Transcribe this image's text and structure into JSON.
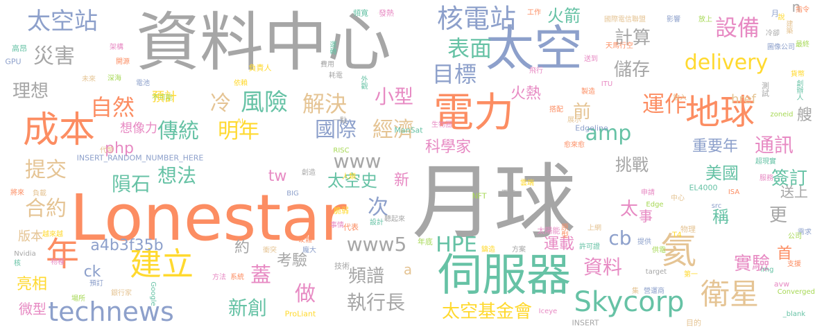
{
  "palette": {
    "gray": "#a6a6a6",
    "orange": "#fc8d62",
    "blue": "#8da0cb",
    "pink": "#e78ac3",
    "green": "#a6d854",
    "yellow": "#ffd92f",
    "tan": "#e5c494",
    "teal": "#66c2a5"
  },
  "words": [
    {
      "text": "月球",
      "c": "gray"
    },
    {
      "text": "Lonestar",
      "c": "orange"
    },
    {
      "text": "資料中心",
      "c": "gray"
    },
    {
      "text": "太空",
      "c": "blue"
    },
    {
      "text": "伺服器",
      "c": "teal"
    },
    {
      "text": "電力",
      "c": "orange"
    },
    {
      "text": "地球",
      "c": "orange"
    },
    {
      "text": "成本",
      "c": "orange"
    },
    {
      "text": "年",
      "c": "orange"
    },
    {
      "text": "建立",
      "c": "yellow"
    },
    {
      "text": "technews",
      "c": "blue"
    },
    {
      "text": "氦",
      "c": "tan"
    },
    {
      "text": "衛星",
      "c": "tan"
    },
    {
      "text": "Skycorp",
      "c": "teal"
    },
    {
      "text": "核電站",
      "c": "blue"
    },
    {
      "text": "太空站",
      "c": "blue"
    },
    {
      "text": "表面",
      "c": "teal"
    },
    {
      "text": "目標",
      "c": "blue"
    },
    {
      "text": "自然",
      "c": "orange"
    },
    {
      "text": "風險",
      "c": "teal"
    },
    {
      "text": "解決",
      "c": "tan"
    },
    {
      "text": "冷",
      "c": "tan"
    },
    {
      "text": "傳統",
      "c": "teal"
    },
    {
      "text": "明年",
      "c": "yellow"
    },
    {
      "text": "國際",
      "c": "blue"
    },
    {
      "text": "經濟",
      "c": "tan"
    },
    {
      "text": "delivery",
      "c": "yellow"
    },
    {
      "text": "amp",
      "c": "teal"
    },
    {
      "text": "運作",
      "c": "orange"
    },
    {
      "text": "設備",
      "c": "pink"
    },
    {
      "text": "計算",
      "c": "gray"
    },
    {
      "text": "儲存",
      "c": "gray"
    },
    {
      "text": "火箭",
      "c": "teal"
    },
    {
      "text": "災害",
      "c": "gray"
    },
    {
      "text": "理想",
      "c": "gray"
    },
    {
      "text": "小型",
      "c": "pink"
    },
    {
      "text": "火熱",
      "c": "pink"
    },
    {
      "text": "前",
      "c": "tan"
    },
    {
      "text": "php",
      "c": "pink"
    },
    {
      "text": "想法",
      "c": "teal"
    },
    {
      "text": "隕石",
      "c": "teal"
    },
    {
      "text": "提交",
      "c": "tan"
    },
    {
      "text": "合約",
      "c": "tan"
    },
    {
      "text": "www",
      "c": "gray"
    },
    {
      "text": "www5",
      "c": "gray"
    },
    {
      "text": "tw",
      "c": "pink"
    },
    {
      "text": "HPE",
      "c": "teal"
    },
    {
      "text": "cb",
      "c": "blue"
    },
    {
      "text": "挑戰",
      "c": "gray"
    },
    {
      "text": "美國",
      "c": "teal"
    },
    {
      "text": "通訊",
      "c": "pink"
    },
    {
      "text": "簽訂",
      "c": "teal"
    },
    {
      "text": "更",
      "c": "gray"
    },
    {
      "text": "太",
      "c": "pink"
    },
    {
      "text": "稱",
      "c": "teal"
    },
    {
      "text": "事",
      "c": "pink"
    },
    {
      "text": "重要年",
      "c": "blue"
    },
    {
      "text": "科學家",
      "c": "pink"
    },
    {
      "text": "太空史",
      "c": "teal"
    },
    {
      "text": "新",
      "c": "pink"
    },
    {
      "text": "次",
      "c": "blue"
    },
    {
      "text": "約",
      "c": "gray"
    },
    {
      "text": "蓋",
      "c": "pink"
    },
    {
      "text": "考驗",
      "c": "gray"
    },
    {
      "text": "頻譜",
      "c": "gray"
    },
    {
      "text": "執行長",
      "c": "gray"
    },
    {
      "text": "做",
      "c": "pink"
    },
    {
      "text": "新創",
      "c": "teal"
    },
    {
      "text": "太空基金會",
      "c": "yellow"
    },
    {
      "text": "資料",
      "c": "pink"
    },
    {
      "text": "實驗",
      "c": "pink"
    },
    {
      "text": "運載",
      "c": "pink"
    },
    {
      "text": "a4b3f35b",
      "c": "blue"
    },
    {
      "text": "ck",
      "c": "blue"
    },
    {
      "text": "亮相",
      "c": "yellow"
    },
    {
      "text": "微型",
      "c": "pink"
    },
    {
      "text": "版本",
      "c": "tan"
    },
    {
      "text": "預計",
      "c": "yellow"
    },
    {
      "text": "想像力",
      "c": "pink"
    },
    {
      "text": "href",
      "c": "tan"
    },
    {
      "text": "n",
      "c": "gray"
    },
    {
      "text": "艘",
      "c": "gray"
    },
    {
      "text": "送上",
      "c": "gray"
    },
    {
      "text": "首",
      "c": "orange"
    },
    {
      "text": "a",
      "c": "tan"
    }
  ],
  "small_words": [
    "頻寬",
    "發熱",
    "工作",
    "國際電信聯盟",
    "影響",
    "放上",
    "說",
    "冷卻",
    "高昂",
    "架構",
    "開源",
    "未來",
    "GPU",
    "深海",
    "負責人",
    "費用",
    "運轉",
    "送到",
    "天馬行空",
    "建築",
    "圖像公司",
    "最終",
    "貨幣",
    "測試",
    "創辦人",
    "ITU",
    "製造",
    "放入",
    "電池",
    "不可能",
    "依賴",
    "耗電",
    "外觀",
    "飛行",
    "搭配",
    "展示",
    "Edgeline",
    "zoneid",
    "AI",
    "一點",
    "ManSat",
    "生物圈",
    "愈來愈",
    "代幣",
    "INSERT_RANDOM_NUMBER_HERE",
    "RISC",
    "人類",
    "創造",
    "超現實",
    "服務",
    "將來",
    "負載",
    "BIG",
    "NFT",
    "雲端",
    "軍事",
    "EL4000",
    "申請",
    "ISA",
    "中心",
    "src",
    "Edge",
    "脆弱",
    "聽起來",
    "設計",
    "事情",
    "代表",
    "上網",
    "需求",
    "公司",
    "越來越",
    "Nvidia",
    "核",
    "物種",
    "硬體",
    "衝突",
    "龐大",
    "年底",
    "鑄造",
    "方案",
    "許可證",
    "太陽能",
    "原型",
    "物理",
    "提供",
    "供電",
    "T4",
    "技術",
    "Google",
    "方法",
    "系統",
    "銀行家",
    "預訂",
    "場所",
    "第一",
    "target",
    "img",
    "avw",
    "支援",
    "集",
    "營運商",
    "Converged",
    "ProLiant",
    "INSERT",
    "_blank",
    "Iceye",
    "指令",
    "目的",
    "月",
    "受",
    "激進",
    "菜過於",
    "計劃",
    "V"
  ]
}
